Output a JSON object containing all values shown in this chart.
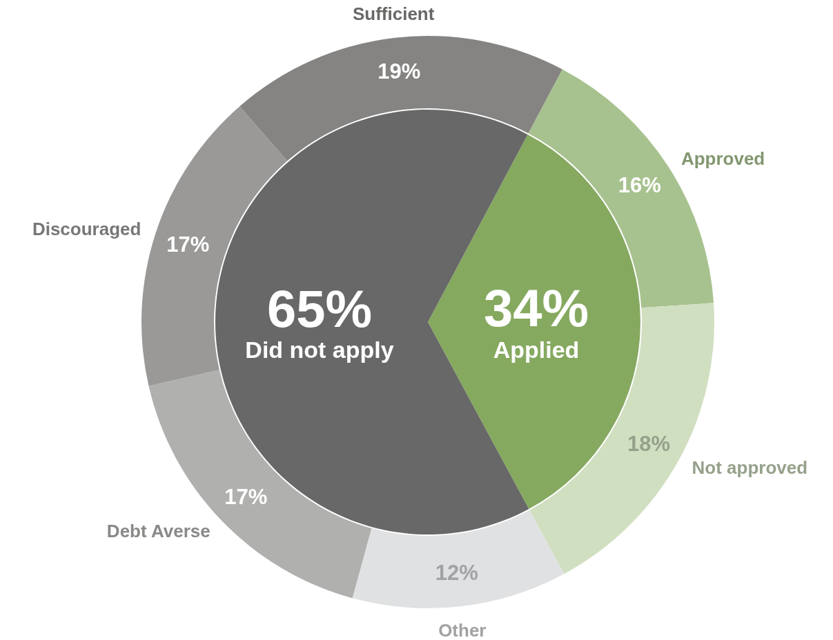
{
  "chart_data": [
    {
      "type": "pie",
      "categories": [
        "Applied",
        "Did not apply"
      ],
      "values": [
        34,
        65
      ],
      "colors": [
        "#86a960",
        "#676867"
      ],
      "value_labels": [
        "34%",
        "65%"
      ]
    },
    {
      "type": "donut",
      "categories": [
        "Approved",
        "Not approved",
        "Other",
        "Debt Averse",
        "Discouraged",
        "Sufficient"
      ],
      "values": [
        16,
        18,
        12,
        17,
        17,
        19
      ],
      "colors": [
        "#a8c28f",
        "#d1dfc1",
        "#e0e1e2",
        "#b0b0ae",
        "#9a9998",
        "#858482"
      ],
      "value_labels": [
        "16%",
        "18%",
        "12%",
        "17%",
        "17%",
        "19%"
      ]
    }
  ]
}
